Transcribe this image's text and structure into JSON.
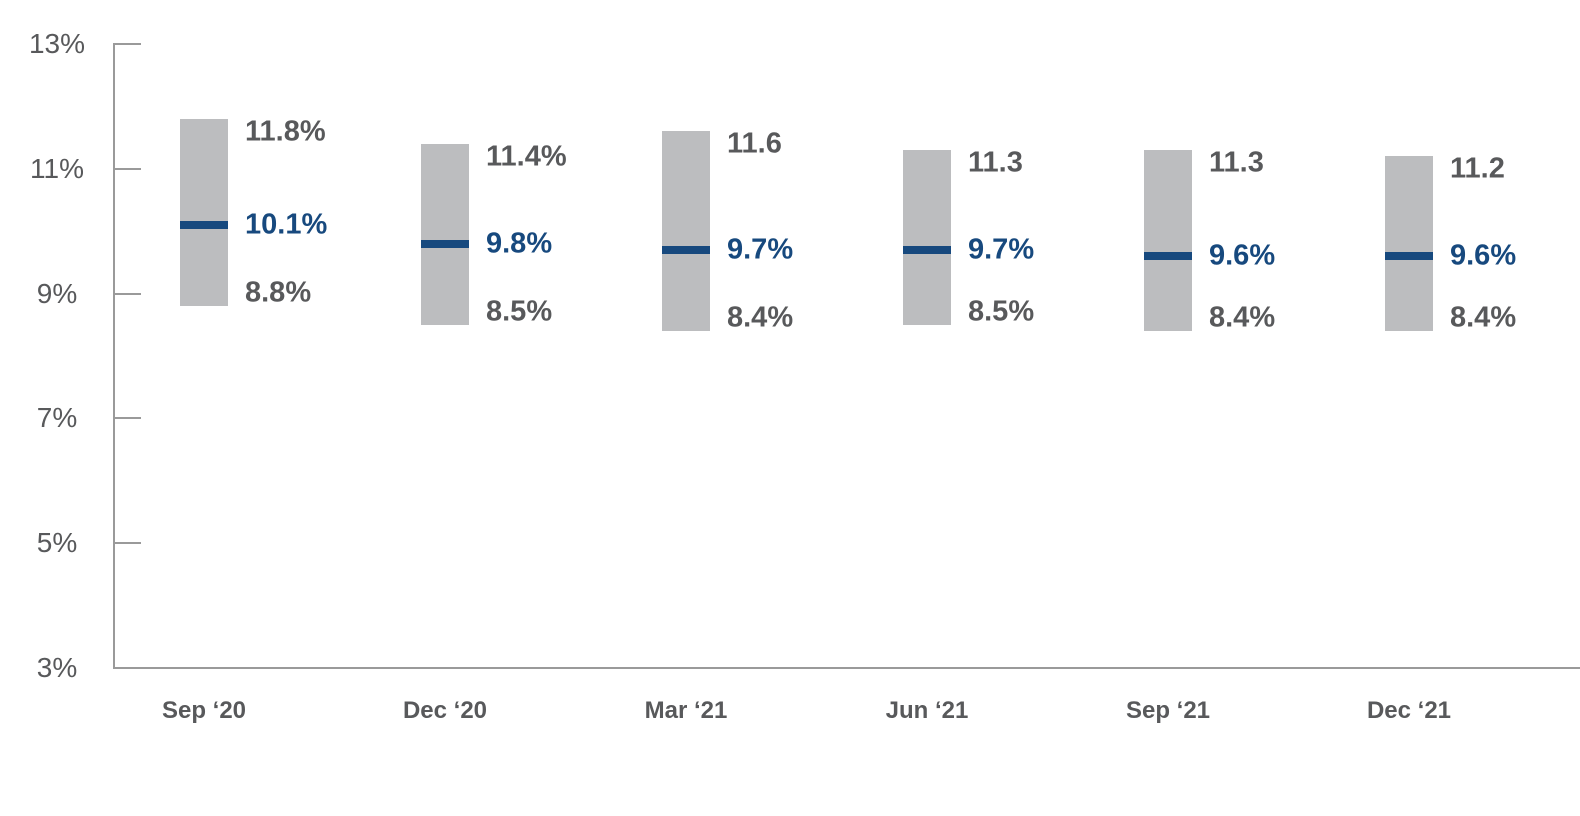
{
  "page": {
    "background": "#FFFFFF"
  },
  "colors": {
    "bar_fill": "#BCBDBF",
    "median_line": "#17497E",
    "value_label": "#58595B",
    "median_value_label": "#17497E",
    "axis_line": "#9A9A9A",
    "tick_label": "#58595B",
    "category_label": "#58595B"
  },
  "chart_data": {
    "type": "bar",
    "subtype": "floating-range-bars-with-median-markers",
    "title": "",
    "xlabel": "",
    "ylabel": "",
    "grid": false,
    "legend": false,
    "categories": [
      "Sep ‘20",
      "Dec ‘20",
      "Mar ‘21",
      "Jun ‘21",
      "Sep ‘21",
      "Dec ‘21"
    ],
    "series": [
      {
        "name": "high",
        "values": [
          11.8,
          11.4,
          11.6,
          11.3,
          11.3,
          11.2
        ],
        "labels": [
          "11.8%",
          "11.4%",
          "11.6",
          "11.3",
          "11.3",
          "11.2"
        ]
      },
      {
        "name": "median",
        "values": [
          10.1,
          9.8,
          9.7,
          9.7,
          9.6,
          9.6
        ],
        "labels": [
          "10.1%",
          "9.8%",
          "9.7%",
          "9.7%",
          "9.6%",
          "9.6%"
        ]
      },
      {
        "name": "low",
        "values": [
          8.8,
          8.5,
          8.4,
          8.5,
          8.4,
          8.4
        ],
        "labels": [
          "8.8%",
          "8.5%",
          "8.4%",
          "8.5%",
          "8.4%",
          "8.4%"
        ]
      }
    ],
    "y_axis": {
      "min": 3,
      "max": 13,
      "tick_values": [
        13,
        11,
        9,
        7,
        5,
        3
      ],
      "tick_labels": [
        "13%",
        "11%",
        "9%",
        "7%",
        "5%",
        "3%"
      ]
    }
  }
}
